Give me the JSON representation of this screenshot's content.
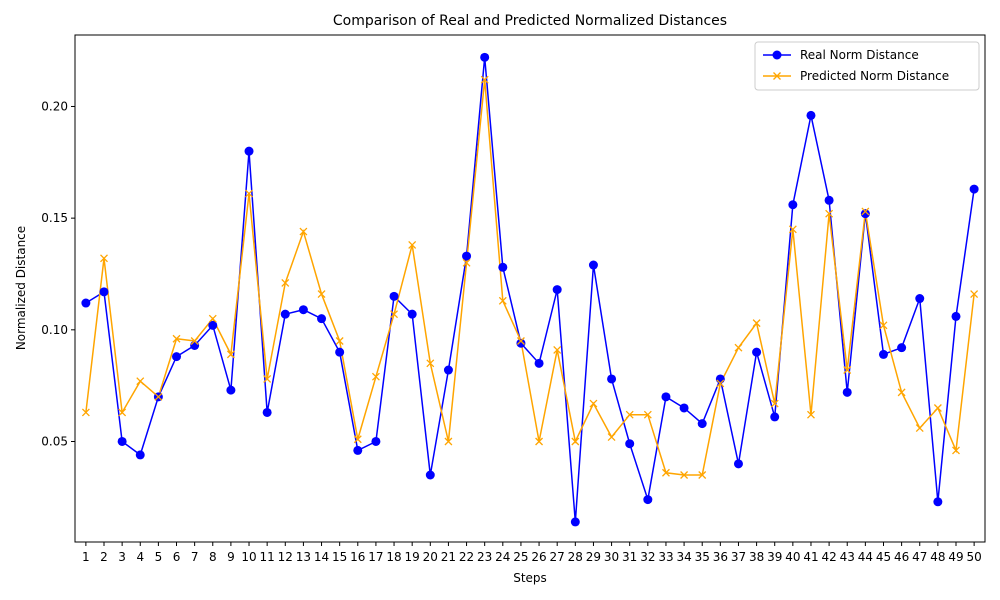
{
  "chart_data": {
    "type": "line",
    "title": "Comparison of Real and Predicted Normalized Distances",
    "xlabel": "Steps",
    "ylabel": "Normalized Distance",
    "x": [
      1,
      2,
      3,
      4,
      5,
      6,
      7,
      8,
      9,
      10,
      11,
      12,
      13,
      14,
      15,
      16,
      17,
      18,
      19,
      20,
      21,
      22,
      23,
      24,
      25,
      26,
      27,
      28,
      29,
      30,
      31,
      32,
      33,
      34,
      35,
      36,
      37,
      38,
      39,
      40,
      41,
      42,
      43,
      44,
      45,
      46,
      47,
      48,
      49,
      50
    ],
    "ylim": [
      0.005,
      0.232
    ],
    "yticks": [
      0.05,
      0.1,
      0.15,
      0.2
    ],
    "ytick_labels": [
      "0.05",
      "0.10",
      "0.15",
      "0.20"
    ],
    "grid": false,
    "legend_placement": "top-right",
    "series": [
      {
        "name": "Real Norm Distance",
        "color": "#0000ff",
        "marker": "circle",
        "values": [
          0.112,
          0.117,
          0.05,
          0.044,
          0.07,
          0.088,
          0.093,
          0.102,
          0.073,
          0.18,
          0.063,
          0.107,
          0.109,
          0.105,
          0.09,
          0.046,
          0.05,
          0.115,
          0.107,
          0.035,
          0.082,
          0.133,
          0.222,
          0.128,
          0.094,
          0.085,
          0.118,
          0.014,
          0.129,
          0.078,
          0.049,
          0.024,
          0.07,
          0.065,
          0.058,
          0.078,
          0.04,
          0.09,
          0.061,
          0.156,
          0.196,
          0.158,
          0.072,
          0.152,
          0.089,
          0.092,
          0.114,
          0.023,
          0.106,
          0.163
        ]
      },
      {
        "name": "Predicted Norm Distance",
        "color": "#ffa500",
        "marker": "x",
        "values": [
          0.063,
          0.132,
          0.063,
          0.077,
          0.07,
          0.096,
          0.095,
          0.105,
          0.089,
          0.161,
          0.078,
          0.121,
          0.144,
          0.116,
          0.095,
          0.051,
          0.079,
          0.107,
          0.138,
          0.085,
          0.05,
          0.13,
          0.212,
          0.113,
          0.095,
          0.05,
          0.091,
          0.05,
          0.067,
          0.052,
          0.062,
          0.062,
          0.036,
          0.035,
          0.035,
          0.076,
          0.092,
          0.103,
          0.067,
          0.145,
          0.062,
          0.152,
          0.082,
          0.153,
          0.102,
          0.072,
          0.056,
          0.065,
          0.046,
          0.116
        ]
      }
    ]
  }
}
